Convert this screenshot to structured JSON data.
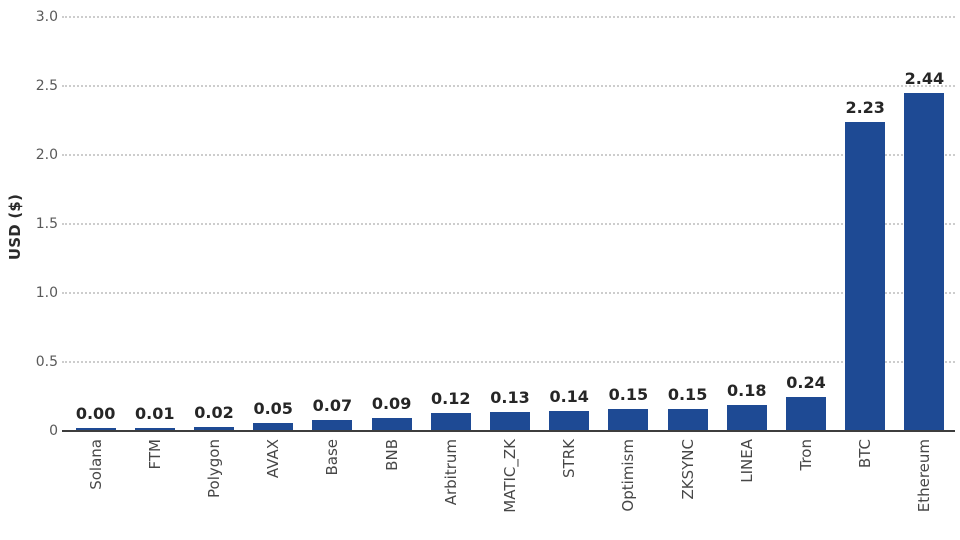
{
  "chart_data": {
    "type": "bar",
    "title": "",
    "xlabel": "",
    "ylabel": "USD ($)",
    "ylim": [
      0,
      3.0
    ],
    "ytick_labels": [
      "0",
      "0.5",
      "1.0",
      "1.5",
      "2.0",
      "2.5",
      "3.0"
    ],
    "ytick_values": [
      0,
      0.5,
      1.0,
      1.5,
      2.0,
      2.5,
      3.0
    ],
    "grid": "horizontal-dotted",
    "legend": "none",
    "bar_color": "#1e4a94",
    "categories": [
      "Solana",
      "FTM",
      "Polygon",
      "AVAX",
      "Base",
      "BNB",
      "Arbitrum",
      "MATIC_ZK",
      "STRK",
      "Optimism",
      "ZKSYNC",
      "LINEA",
      "Tron",
      "BTC",
      "Ethereum"
    ],
    "values": [
      0.0,
      0.01,
      0.02,
      0.05,
      0.07,
      0.09,
      0.12,
      0.13,
      0.14,
      0.15,
      0.15,
      0.18,
      0.24,
      2.23,
      2.44
    ],
    "value_labels": [
      "0.00",
      "0.01",
      "0.02",
      "0.05",
      "0.07",
      "0.09",
      "0.12",
      "0.13",
      "0.14",
      "0.15",
      "0.15",
      "0.18",
      "0.24",
      "2.23",
      "2.44"
    ]
  }
}
